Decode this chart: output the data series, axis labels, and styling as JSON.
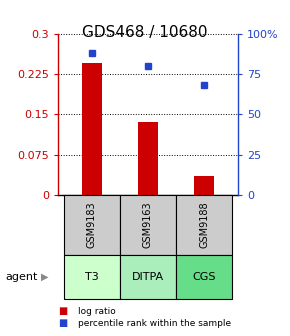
{
  "title": "GDS468 / 10680",
  "samples": [
    "GSM9183",
    "GSM9163",
    "GSM9188"
  ],
  "agents": [
    "T3",
    "DITPA",
    "CGS"
  ],
  "log_ratio": [
    0.245,
    0.135,
    0.035
  ],
  "percentile_rank": [
    88,
    80,
    68
  ],
  "left_ylim": [
    0,
    0.3
  ],
  "right_ylim": [
    0,
    100
  ],
  "left_yticks": [
    0,
    0.075,
    0.15,
    0.225,
    0.3
  ],
  "left_yticklabels": [
    "0",
    "0.075",
    "0.15",
    "0.225",
    "0.3"
  ],
  "right_yticks": [
    0,
    25,
    50,
    75,
    100
  ],
  "right_yticklabels": [
    "0",
    "25",
    "50",
    "75",
    "100%"
  ],
  "bar_color": "#cc0000",
  "square_color": "#2244cc",
  "agent_colors": [
    "#ccffcc",
    "#aaeebb",
    "#66dd88"
  ],
  "sample_box_color": "#cccccc",
  "legend_bar_label": "log ratio",
  "legend_sq_label": "percentile rank within the sample",
  "agent_label": "agent",
  "bar_width": 0.35,
  "title_fontsize": 11,
  "tick_fontsize": 8,
  "label_fontsize": 8
}
